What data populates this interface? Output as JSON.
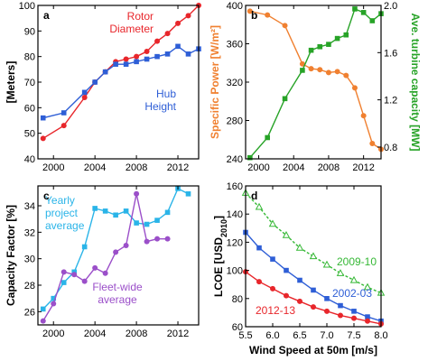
{
  "chart_data": [
    {
      "id": "a",
      "type": "line",
      "panel_label": "a",
      "ylabel": "[Meters]",
      "xlim": [
        1998.5,
        2014
      ],
      "ylim": [
        40,
        100
      ],
      "xticks": [
        "2000",
        "2004",
        "2008",
        "2012"
      ],
      "xtick_values": [
        2000,
        2004,
        2008,
        2012
      ],
      "yticks": [
        "40",
        "50",
        "60",
        "70",
        "80",
        "90",
        "100"
      ],
      "ytick_values": [
        40,
        50,
        60,
        70,
        80,
        90,
        100
      ],
      "series": [
        {
          "name": "Rotor Diameter",
          "color": "#e8262b",
          "marker": "circle",
          "x": [
            1999,
            2001,
            2003,
            2004,
            2005,
            2006,
            2007,
            2008,
            2009,
            2010,
            2011,
            2012,
            2013,
            2014
          ],
          "y": [
            48,
            53,
            64,
            70,
            74,
            78,
            79,
            80,
            82,
            86,
            89,
            93,
            96,
            100
          ]
        },
        {
          "name": "Hub Height",
          "color": "#2e5ed6",
          "marker": "square",
          "x": [
            1999,
            2001,
            2003,
            2004,
            2005,
            2006,
            2007,
            2008,
            2009,
            2010,
            2011,
            2012,
            2013,
            2014
          ],
          "y": [
            56,
            58,
            66,
            70,
            74,
            77,
            77,
            78,
            79,
            80,
            81,
            84,
            81,
            83
          ]
        }
      ],
      "annotations": [
        {
          "lines": [
            "Rotor",
            "Diameter"
          ],
          "color": "#e8262b"
        },
        {
          "lines": [
            "Hub",
            "Height"
          ],
          "color": "#2e5ed6"
        }
      ]
    },
    {
      "id": "b",
      "type": "line",
      "panel_label": "b",
      "ylabel_left": "Specific Power [W/m²]",
      "ylabel_left_color": "#f08030",
      "ylabel_right": "Ave. turbine capacity [MW]",
      "ylabel_right_color": "#27a327",
      "xlim": [
        1998.5,
        2014
      ],
      "ylim_left": [
        240,
        400
      ],
      "ylim_right": [
        0.7,
        2.0
      ],
      "xticks": [
        "2000",
        "2004",
        "2008",
        "2012"
      ],
      "xtick_values": [
        2000,
        2004,
        2008,
        2012
      ],
      "yticks_left": [
        "240",
        "280",
        "320",
        "360",
        "400"
      ],
      "ytick_left_values": [
        240,
        280,
        320,
        360,
        400
      ],
      "yticks_right": [
        "0.8",
        "1.2",
        "1.6",
        "2.0"
      ],
      "ytick_right_values": [
        0.8,
        1.2,
        1.6,
        2.0
      ],
      "series": [
        {
          "name": "Specific Power",
          "axis": "left",
          "color": "#f08030",
          "marker": "circle",
          "x": [
            1999,
            2001,
            2003,
            2005,
            2006,
            2007,
            2008,
            2009,
            2010,
            2011,
            2012,
            2013,
            2014
          ],
          "y": [
            394,
            390,
            379,
            339,
            334,
            333,
            330,
            331,
            327,
            314,
            285,
            256,
            250
          ]
        },
        {
          "name": "Ave. turbine capacity",
          "axis": "right",
          "color": "#27a327",
          "marker": "square",
          "x": [
            1999,
            2001,
            2003,
            2005,
            2006,
            2007,
            2008,
            2009,
            2010,
            2011,
            2012,
            2013,
            2014
          ],
          "y": [
            0.71,
            0.88,
            1.21,
            1.45,
            1.62,
            1.65,
            1.67,
            1.72,
            1.75,
            1.97,
            1.94,
            1.87,
            1.93
          ]
        }
      ]
    },
    {
      "id": "c",
      "type": "line",
      "panel_label": "c",
      "ylabel": "Capacity Factor [%]",
      "xlim": [
        1998.5,
        2014
      ],
      "ylim": [
        25,
        35.5
      ],
      "xticks": [
        "2000",
        "2004",
        "2008",
        "2012"
      ],
      "xtick_values": [
        2000,
        2004,
        2008,
        2012
      ],
      "yticks": [
        "26",
        "28",
        "30",
        "32",
        "34"
      ],
      "ytick_values": [
        26,
        28,
        30,
        32,
        34
      ],
      "series": [
        {
          "name": "Yearly project average",
          "color": "#2ab4e8",
          "marker": "square",
          "x": [
            1999,
            2000,
            2001,
            2002,
            2003,
            2004,
            2005,
            2006,
            2007,
            2008,
            2009,
            2010,
            2011,
            2012,
            2013
          ],
          "y": [
            26.2,
            27.0,
            28.2,
            29.0,
            30.9,
            33.8,
            33.6,
            33.3,
            33.6,
            32.7,
            32.6,
            32.9,
            33.5,
            35.3,
            34.9
          ]
        },
        {
          "name": "Fleet-wide average",
          "color": "#9b4fc9",
          "marker": "circle",
          "x": [
            1999,
            2000,
            2001,
            2002,
            2003,
            2004,
            2005,
            2006,
            2007,
            2008,
            2009,
            2010,
            2011
          ],
          "y": [
            25.3,
            26.6,
            29.0,
            28.8,
            28.3,
            29.3,
            28.9,
            30.5,
            31.0,
            34.9,
            31.3,
            31.5,
            31.5
          ]
        }
      ],
      "annotations": [
        {
          "lines": [
            "Yearly",
            "project",
            "average"
          ],
          "color": "#2ab4e8"
        },
        {
          "lines": [
            "Fleet-wide",
            "average"
          ],
          "color": "#9b4fc9"
        }
      ]
    },
    {
      "id": "d",
      "type": "line",
      "panel_label": "d",
      "xlabel": "Wind Speed at 50m [m/s]",
      "ylabel": "LCOE [USD",
      "ylabel_sub": "2010",
      "ylabel_end": "]",
      "xlim": [
        5.5,
        8.0
      ],
      "ylim": [
        60,
        160
      ],
      "xticks": [
        "5.5",
        "6.0",
        "6.5",
        "7.0",
        "7.5",
        "8.0"
      ],
      "xtick_values": [
        5.5,
        6.0,
        6.5,
        7.0,
        7.5,
        8.0
      ],
      "yticks": [
        "60",
        "80",
        "100",
        "120",
        "140",
        "160"
      ],
      "ytick_values": [
        60,
        80,
        100,
        120,
        140,
        160
      ],
      "series": [
        {
          "name": "2009-10",
          "color": "#35b835",
          "marker": "triangle",
          "dashed": true,
          "x": [
            5.5,
            5.75,
            6.0,
            6.25,
            6.5,
            6.75,
            7.0,
            7.25,
            7.5,
            7.75,
            8.0
          ],
          "y": [
            155,
            145,
            133,
            125,
            116,
            110,
            104,
            98,
            93,
            88,
            84
          ]
        },
        {
          "name": "2002-03",
          "color": "#2e5ed6",
          "marker": "square",
          "x": [
            5.5,
            5.75,
            6.0,
            6.25,
            6.5,
            6.75,
            7.0,
            7.25,
            7.5,
            7.75,
            8.0
          ],
          "y": [
            127,
            116,
            108,
            100,
            93,
            86,
            80,
            75,
            71,
            67,
            64
          ]
        },
        {
          "name": "2012-13",
          "color": "#e8262b",
          "marker": "circle",
          "x": [
            5.5,
            5.75,
            6.0,
            6.25,
            6.5,
            6.75,
            7.0,
            7.25,
            7.5,
            7.75,
            8.0
          ],
          "y": [
            99,
            92,
            87,
            82,
            78,
            74,
            71,
            68,
            66,
            64,
            62
          ]
        }
      ],
      "annotations": [
        {
          "lines": [
            "2009-10"
          ],
          "color": "#35b835"
        },
        {
          "lines": [
            "2002-03"
          ],
          "color": "#2e5ed6"
        },
        {
          "lines": [
            "2012-13"
          ],
          "color": "#e8262b"
        }
      ]
    }
  ]
}
